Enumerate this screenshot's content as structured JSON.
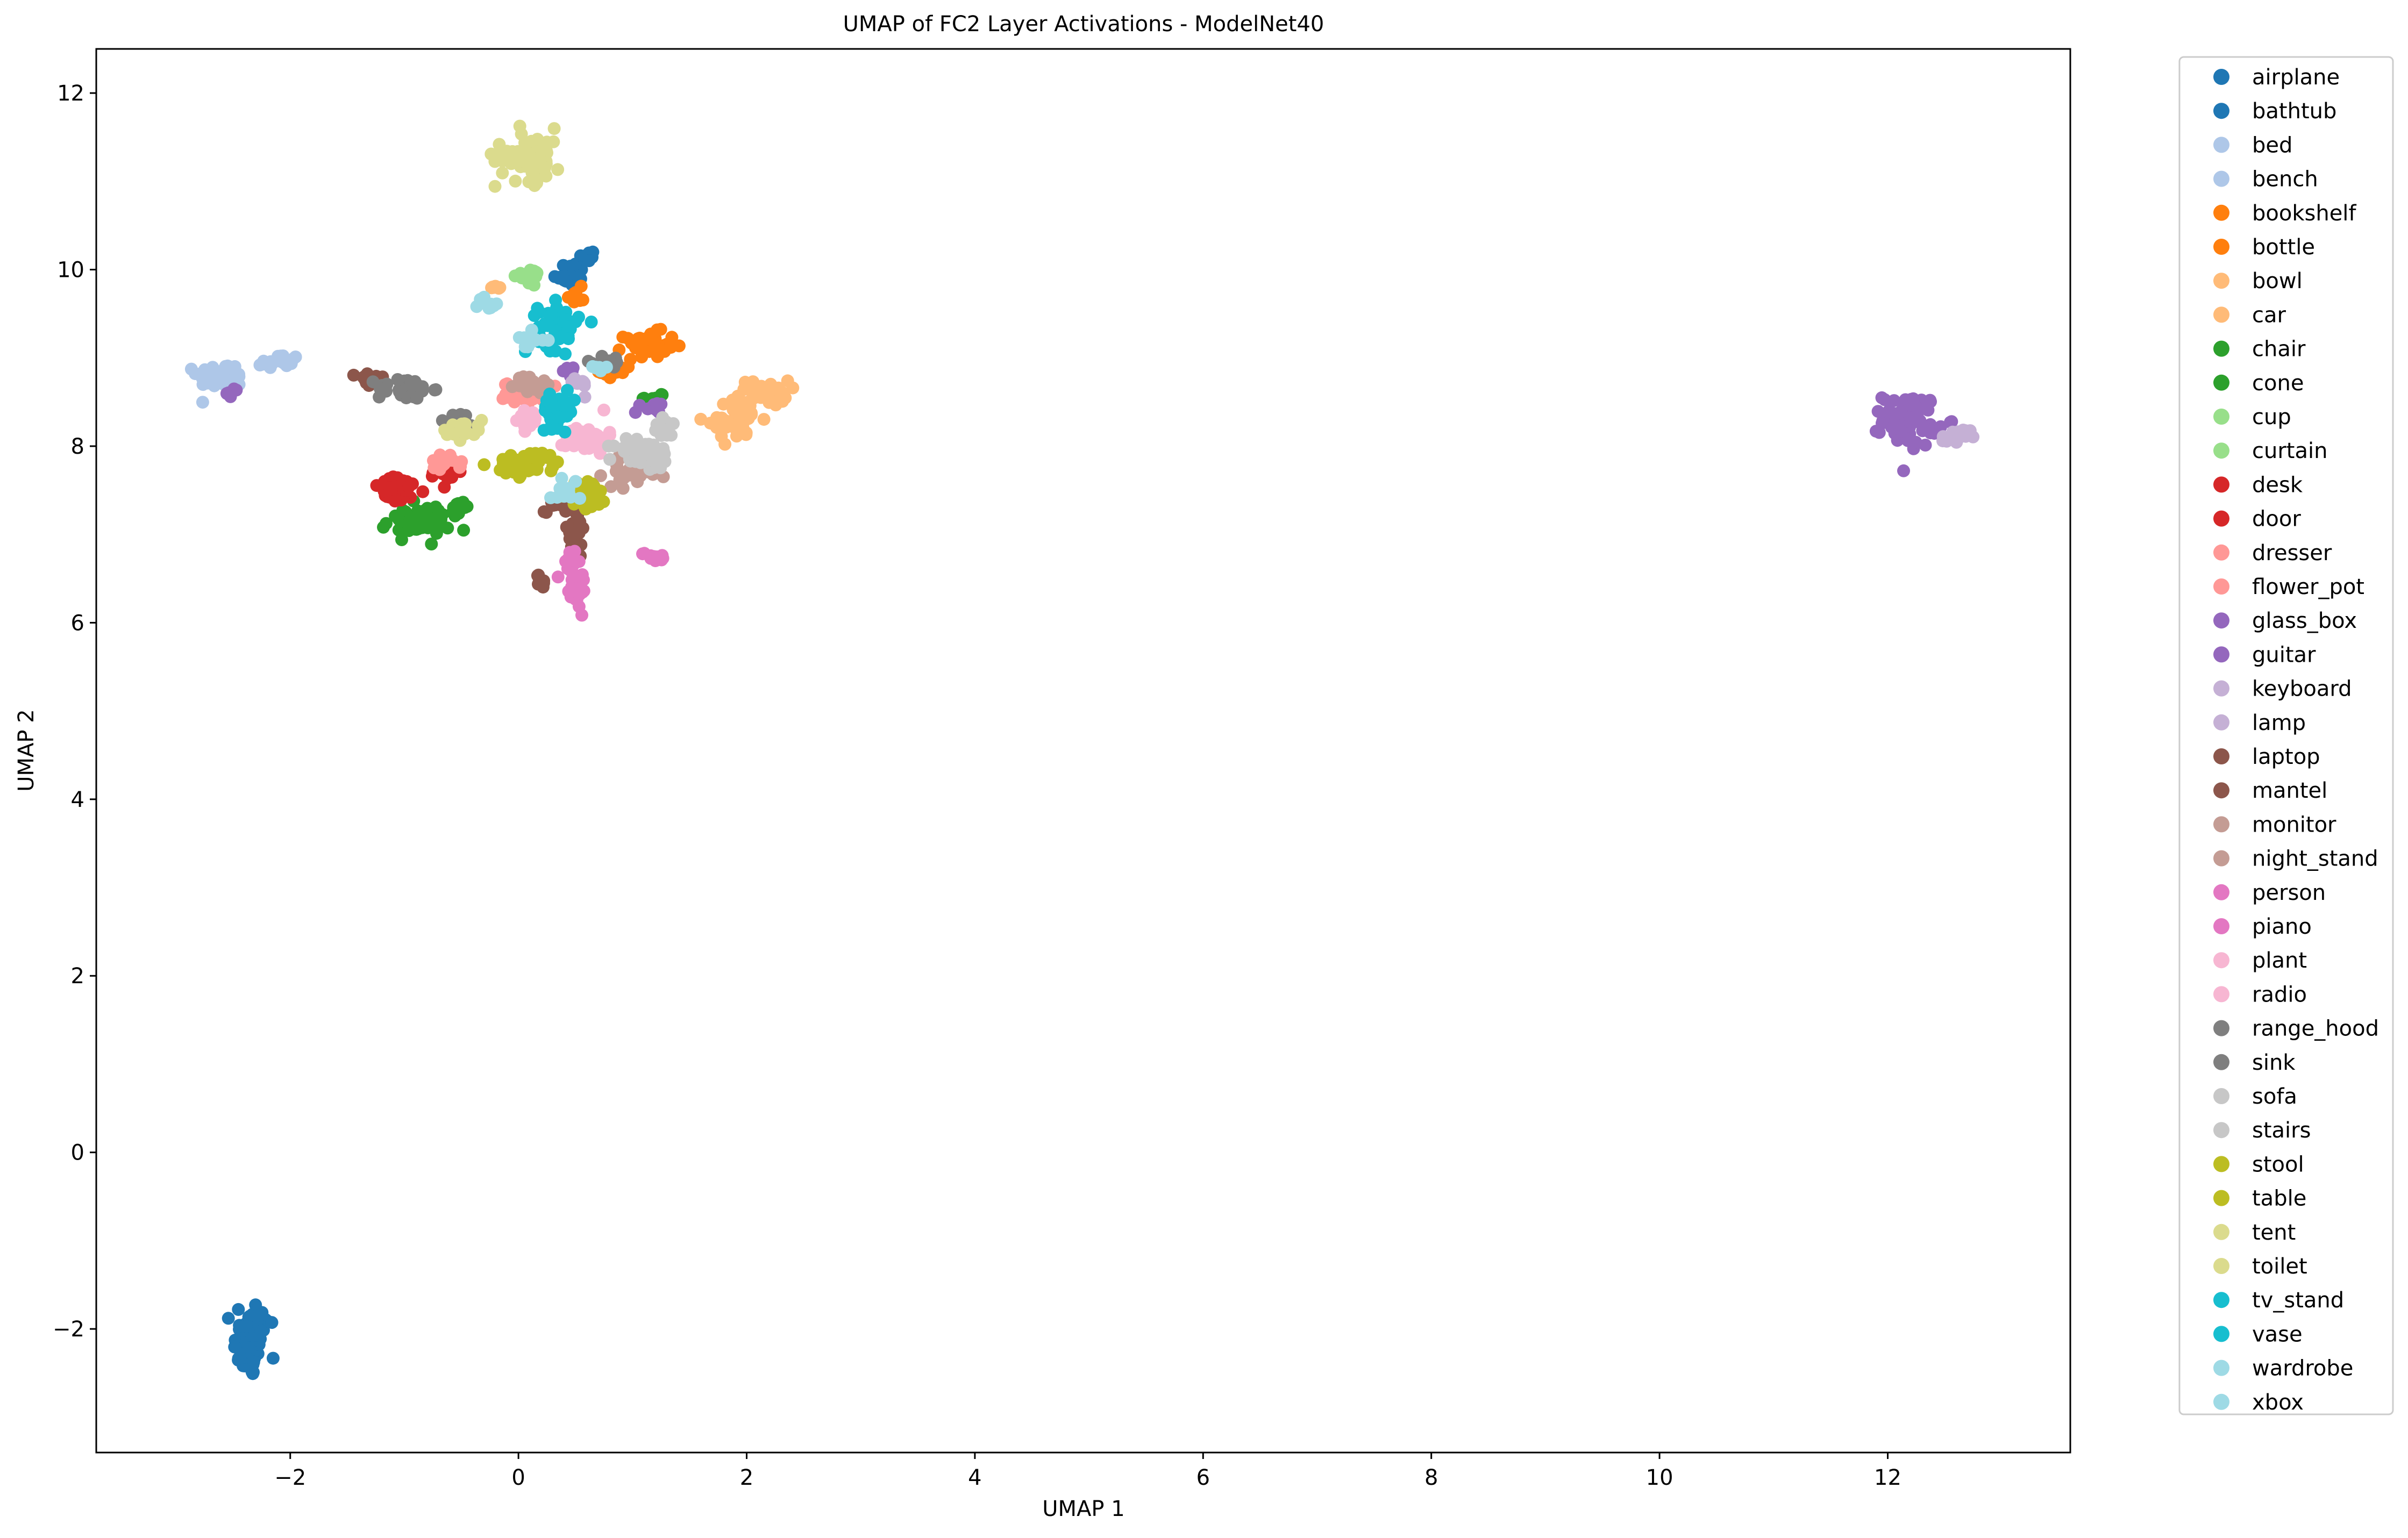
{
  "chart_data": {
    "type": "scatter",
    "title": "UMAP of FC2 Layer Activations - ModelNet40",
    "xlabel": "UMAP 1",
    "ylabel": "UMAP 2",
    "xlim": [
      -3.7,
      13.6
    ],
    "ylim": [
      -3.4,
      12.5
    ],
    "xticks": [
      -2,
      0,
      2,
      4,
      6,
      8,
      10,
      12
    ],
    "yticks": [
      -2,
      0,
      2,
      4,
      6,
      8,
      10,
      12
    ],
    "xtick_labels": [
      "−2",
      "0",
      "2",
      "4",
      "6",
      "8",
      "10",
      "12"
    ],
    "ytick_labels": [
      "−2",
      "0",
      "2",
      "4",
      "6",
      "8",
      "10",
      "12"
    ],
    "grid": false,
    "legend_position": "outside-right",
    "series": [
      {
        "name": "airplane",
        "color": "#1f77b4",
        "clusters": [
          [
            -2.35,
            -2.2,
            0.12,
            0.3,
            60
          ],
          [
            0.45,
            9.95,
            0.12,
            0.12,
            25
          ]
        ]
      },
      {
        "name": "bathtub",
        "color": "#1f77b4",
        "clusters": [
          [
            -2.3,
            -1.95,
            0.1,
            0.25,
            40
          ],
          [
            0.6,
            10.15,
            0.06,
            0.06,
            10
          ]
        ]
      },
      {
        "name": "bed",
        "color": "#aec7e8",
        "clusters": [
          [
            -2.6,
            8.8,
            0.18,
            0.12,
            55
          ]
        ]
      },
      {
        "name": "bench",
        "color": "#aec7e8",
        "clusters": [
          [
            -2.1,
            8.95,
            0.15,
            0.08,
            25
          ]
        ]
      },
      {
        "name": "bookshelf",
        "color": "#ff7f0e",
        "clusters": [
          [
            1.15,
            9.15,
            0.18,
            0.12,
            40
          ],
          [
            0.5,
            9.7,
            0.06,
            0.08,
            10
          ]
        ]
      },
      {
        "name": "bottle",
        "color": "#ff7f0e",
        "clusters": [
          [
            0.85,
            8.85,
            0.12,
            0.08,
            20
          ]
        ]
      },
      {
        "name": "bowl",
        "color": "#ffbb78",
        "clusters": [
          [
            1.9,
            8.3,
            0.2,
            0.2,
            35
          ],
          [
            -0.2,
            9.8,
            0.06,
            0.05,
            6
          ]
        ]
      },
      {
        "name": "car",
        "color": "#ffbb78",
        "clusters": [
          [
            2.15,
            8.6,
            0.18,
            0.12,
            40
          ]
        ]
      },
      {
        "name": "chair",
        "color": "#2ca02c",
        "clusters": [
          [
            -0.9,
            7.15,
            0.25,
            0.15,
            55
          ]
        ]
      },
      {
        "name": "cone",
        "color": "#2ca02c",
        "clusters": [
          [
            1.2,
            8.55,
            0.08,
            0.05,
            8
          ],
          [
            -0.5,
            7.3,
            0.1,
            0.06,
            10
          ]
        ]
      },
      {
        "name": "cup",
        "color": "#98df8a",
        "clusters": [
          [
            0.05,
            9.9,
            0.08,
            0.06,
            10
          ]
        ]
      },
      {
        "name": "curtain",
        "color": "#98df8a",
        "clusters": [
          [
            0.15,
            9.95,
            0.06,
            0.05,
            8
          ]
        ]
      },
      {
        "name": "desk",
        "color": "#d62728",
        "clusters": [
          [
            -1.05,
            7.5,
            0.2,
            0.12,
            40
          ]
        ]
      },
      {
        "name": "door",
        "color": "#d62728",
        "clusters": [
          [
            -0.65,
            7.7,
            0.12,
            0.1,
            20
          ]
        ]
      },
      {
        "name": "dresser",
        "color": "#ff9896",
        "clusters": [
          [
            0.05,
            8.6,
            0.15,
            0.1,
            30
          ]
        ]
      },
      {
        "name": "flower_pot",
        "color": "#ff9896",
        "clusters": [
          [
            -0.65,
            7.8,
            0.12,
            0.08,
            15
          ]
        ]
      },
      {
        "name": "glass_box",
        "color": "#9467bd",
        "clusters": [
          [
            1.15,
            8.45,
            0.1,
            0.06,
            15
          ],
          [
            -2.5,
            8.6,
            0.06,
            0.04,
            6
          ],
          [
            0.45,
            8.85,
            0.06,
            0.05,
            6
          ]
        ]
      },
      {
        "name": "guitar",
        "color": "#9467bd",
        "clusters": [
          [
            12.2,
            8.3,
            0.2,
            0.25,
            70
          ]
        ]
      },
      {
        "name": "keyboard",
        "color": "#c5b0d5",
        "clusters": [
          [
            12.6,
            8.1,
            0.1,
            0.08,
            20
          ]
        ]
      },
      {
        "name": "lamp",
        "color": "#c5b0d5",
        "clusters": [
          [
            0.5,
            8.7,
            0.1,
            0.08,
            12
          ]
        ]
      },
      {
        "name": "laptop",
        "color": "#8c564b",
        "clusters": [
          [
            -1.3,
            8.75,
            0.1,
            0.08,
            15
          ],
          [
            0.5,
            7.0,
            0.1,
            0.25,
            25
          ]
        ]
      },
      {
        "name": "mantel",
        "color": "#8c564b",
        "clusters": [
          [
            0.2,
            6.45,
            0.08,
            0.08,
            10
          ],
          [
            0.35,
            7.35,
            0.1,
            0.08,
            15
          ]
        ]
      },
      {
        "name": "monitor",
        "color": "#c49c94",
        "clusters": [
          [
            1.0,
            7.7,
            0.2,
            0.12,
            40
          ]
        ]
      },
      {
        "name": "night_stand",
        "color": "#c49c94",
        "clusters": [
          [
            0.1,
            8.7,
            0.12,
            0.1,
            20
          ]
        ]
      },
      {
        "name": "person",
        "color": "#e377c2",
        "clusters": [
          [
            0.5,
            6.4,
            0.1,
            0.2,
            30
          ]
        ]
      },
      {
        "name": "piano",
        "color": "#e377c2",
        "clusters": [
          [
            1.2,
            6.75,
            0.1,
            0.05,
            12
          ],
          [
            0.45,
            6.7,
            0.08,
            0.1,
            10
          ]
        ]
      },
      {
        "name": "plant",
        "color": "#f7b6d2",
        "clusters": [
          [
            0.6,
            8.1,
            0.15,
            0.15,
            40
          ]
        ]
      },
      {
        "name": "radio",
        "color": "#f7b6d2",
        "clusters": [
          [
            0.1,
            8.3,
            0.1,
            0.1,
            15
          ]
        ]
      },
      {
        "name": "range_hood",
        "color": "#7f7f7f",
        "clusters": [
          [
            -1.0,
            8.65,
            0.2,
            0.1,
            45
          ]
        ]
      },
      {
        "name": "sink",
        "color": "#7f7f7f",
        "clusters": [
          [
            0.8,
            8.95,
            0.1,
            0.08,
            12
          ],
          [
            -0.5,
            8.3,
            0.1,
            0.06,
            10
          ]
        ]
      },
      {
        "name": "sofa",
        "color": "#c7c7c7",
        "clusters": [
          [
            1.1,
            7.9,
            0.22,
            0.15,
            55
          ]
        ]
      },
      {
        "name": "stairs",
        "color": "#c7c7c7",
        "clusters": [
          [
            1.3,
            8.2,
            0.1,
            0.1,
            15
          ]
        ]
      },
      {
        "name": "stool",
        "color": "#bcbd22",
        "clusters": [
          [
            0.6,
            7.45,
            0.15,
            0.15,
            35
          ]
        ]
      },
      {
        "name": "table",
        "color": "#bcbd22",
        "clusters": [
          [
            0.1,
            7.8,
            0.25,
            0.12,
            45
          ]
        ]
      },
      {
        "name": "tent",
        "color": "#dbdb8d",
        "clusters": [
          [
            0.1,
            11.3,
            0.25,
            0.25,
            70
          ]
        ]
      },
      {
        "name": "toilet",
        "color": "#dbdb8d",
        "clusters": [
          [
            -0.5,
            8.2,
            0.15,
            0.1,
            20
          ]
        ]
      },
      {
        "name": "tv_stand",
        "color": "#17becf",
        "clusters": [
          [
            0.35,
            9.35,
            0.15,
            0.22,
            55
          ]
        ]
      },
      {
        "name": "vase",
        "color": "#17becf",
        "clusters": [
          [
            0.35,
            8.4,
            0.12,
            0.15,
            40
          ]
        ]
      },
      {
        "name": "wardrobe",
        "color": "#9edae5",
        "clusters": [
          [
            -0.3,
            9.6,
            0.1,
            0.08,
            10
          ],
          [
            0.1,
            9.2,
            0.12,
            0.08,
            15
          ]
        ]
      },
      {
        "name": "xbox",
        "color": "#9edae5",
        "clusters": [
          [
            0.4,
            7.5,
            0.1,
            0.12,
            12
          ],
          [
            0.7,
            8.9,
            0.06,
            0.05,
            6
          ]
        ]
      }
    ]
  }
}
